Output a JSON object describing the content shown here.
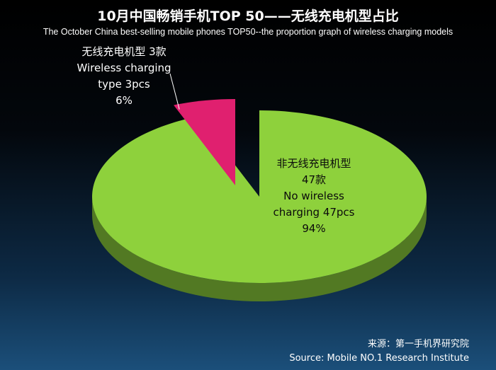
{
  "title": "10月中国畅销手机TOP 50——无线充电机型占比",
  "subtitle": "The October China best-selling mobile phones TOP50--the proportion graph of wireless charging models",
  "source": {
    "line_cn": "来源：第一手机界研究院",
    "line_en": "Source: Mobile NO.1 Research Institute"
  },
  "colors": {
    "no_wireless": "#8ed13c",
    "wireless": "#e0206f"
  },
  "chart_data": {
    "type": "pie",
    "title": "10月中国畅销手机TOP 50——无线充电机型占比",
    "slices": [
      {
        "label_cn": "非无线充电机型",
        "count_cn": "47款",
        "label_en": "No wireless",
        "label_en2": "charging   47pcs",
        "percent_text": "94%",
        "value": 47,
        "percent": 94,
        "color": "#8ed13c"
      },
      {
        "label_cn": "无线充电机型 3款",
        "label_en": "Wireless charging",
        "label_en2": "type   3pcs",
        "percent_text": "6%",
        "value": 3,
        "percent": 6,
        "color": "#e0206f"
      }
    ]
  }
}
